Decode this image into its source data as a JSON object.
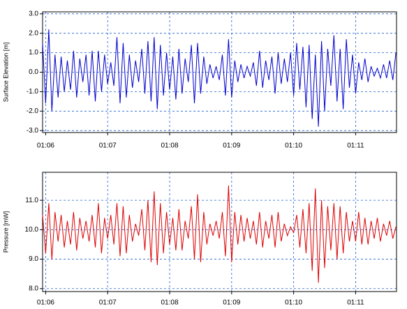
{
  "chart_data": [
    {
      "type": "line",
      "ylabel": "Surface Elevation [m]",
      "xlim": [
        5.95,
        11.66
      ],
      "xticks": [
        {
          "value": 6,
          "label": "01:06"
        },
        {
          "value": 7,
          "label": "01:07"
        },
        {
          "value": 8,
          "label": "01:08"
        },
        {
          "value": 9,
          "label": "01:09"
        },
        {
          "value": 10,
          "label": "01:10"
        },
        {
          "value": 11,
          "label": "01:11"
        }
      ],
      "ylim": [
        -3.1,
        3.1
      ],
      "yticks": [
        {
          "value": -3,
          "label": "-3.0"
        },
        {
          "value": -2,
          "label": "-2.0"
        },
        {
          "value": -1,
          "label": "-1.0"
        },
        {
          "value": 0,
          "label": "0.0"
        },
        {
          "value": 1,
          "label": "1.0"
        },
        {
          "value": 2,
          "label": "2.0"
        },
        {
          "value": 3,
          "label": "3.0"
        }
      ],
      "grid": true,
      "x": [
        5.95,
        6,
        6.05,
        6.1,
        6.15,
        6.2,
        6.25,
        6.3,
        6.35,
        6.4,
        6.45,
        6.5,
        6.55,
        6.6,
        6.65,
        6.7,
        6.75,
        6.8,
        6.85,
        6.9,
        6.95,
        7,
        7.05,
        7.1,
        7.15,
        7.2,
        7.25,
        7.3,
        7.35,
        7.4,
        7.45,
        7.5,
        7.55,
        7.6,
        7.65,
        7.7,
        7.75,
        7.8,
        7.85,
        7.9,
        7.95,
        8,
        8.05,
        8.1,
        8.15,
        8.2,
        8.25,
        8.3,
        8.35,
        8.4,
        8.45,
        8.5,
        8.55,
        8.6,
        8.65,
        8.7,
        8.75,
        8.8,
        8.85,
        8.9,
        8.95,
        9,
        9.05,
        9.1,
        9.15,
        9.2,
        9.25,
        9.3,
        9.35,
        9.4,
        9.45,
        9.5,
        9.55,
        9.6,
        9.65,
        9.7,
        9.75,
        9.8,
        9.85,
        9.9,
        9.95,
        10,
        10.05,
        10.1,
        10.15,
        10.2,
        10.25,
        10.3,
        10.35,
        10.4,
        10.45,
        10.5,
        10.55,
        10.6,
        10.65,
        10.7,
        10.75,
        10.8,
        10.85,
        10.9,
        10.95,
        11,
        11.05,
        11.1,
        11.15,
        11.2,
        11.25,
        11.3,
        11.35,
        11.4,
        11.45,
        11.5,
        11.55,
        11.6,
        11.65
      ],
      "series": [
        {
          "color": "#0000cc",
          "values": [
            1.5,
            -1.6,
            2.2,
            -2.0,
            0.9,
            -1.3,
            0.8,
            -1.0,
            0.6,
            -0.9,
            1.1,
            -1.3,
            0.7,
            -0.5,
            0.9,
            -1.2,
            1.1,
            -1.5,
            1.1,
            -1.0,
            0.9,
            -0.6,
            0.5,
            -0.7,
            1.8,
            -1.6,
            1.5,
            -1.3,
            0.9,
            -0.8,
            0.6,
            -0.5,
            1.2,
            -1.1,
            1.6,
            -1.5,
            1.8,
            -1.9,
            1.4,
            -1.2,
            1.0,
            -0.9,
            0.8,
            -1.4,
            1.2,
            -1.1,
            0.7,
            -0.5,
            1.4,
            -1.6,
            1.5,
            -1.1,
            0.8,
            -0.6,
            0.4,
            -0.3,
            0.3,
            -0.4,
            0.9,
            -1.2,
            1.7,
            -1.3,
            0.6,
            -0.5,
            0.4,
            -0.3,
            0.3,
            -0.2,
            0.5,
            -0.7,
            1.1,
            -0.8,
            0.6,
            -0.4,
            0.8,
            -1.1,
            1.0,
            -0.6,
            0.7,
            -0.5,
            1.0,
            -1.2,
            1.5,
            -0.9,
            1.3,
            -1.8,
            1.4,
            -2.4,
            0.9,
            -2.8,
            1.6,
            -2.0,
            1.2,
            -0.7,
            1.9,
            -1.5,
            1.2,
            -1.9,
            1.7,
            -0.8,
            0.9,
            -1.1,
            0.5,
            -0.4,
            0.7,
            -0.5,
            0.3,
            -0.2,
            0.2,
            -0.3,
            0.4,
            -0.3,
            0.6,
            -0.4,
            1.0
          ]
        }
      ]
    },
    {
      "type": "line",
      "ylabel": "Pressure [mW]",
      "xlim": [
        5.95,
        11.66
      ],
      "xticks": [
        {
          "value": 6,
          "label": "01:06"
        },
        {
          "value": 7,
          "label": "01:07"
        },
        {
          "value": 8,
          "label": "01:08"
        },
        {
          "value": 9,
          "label": "01:09"
        },
        {
          "value": 10,
          "label": "01:10"
        },
        {
          "value": 11,
          "label": "01:11"
        }
      ],
      "ylim": [
        7.9,
        11.95
      ],
      "yticks": [
        {
          "value": 8,
          "label": "8.0"
        },
        {
          "value": 9,
          "label": "9.0"
        },
        {
          "value": 10,
          "label": "10.0"
        },
        {
          "value": 11,
          "label": "11.0"
        }
      ],
      "grid": true,
      "x": [
        5.95,
        6,
        6.05,
        6.1,
        6.15,
        6.2,
        6.25,
        6.3,
        6.35,
        6.4,
        6.45,
        6.5,
        6.55,
        6.6,
        6.65,
        6.7,
        6.75,
        6.8,
        6.85,
        6.9,
        6.95,
        7,
        7.05,
        7.1,
        7.15,
        7.2,
        7.25,
        7.3,
        7.35,
        7.4,
        7.45,
        7.5,
        7.55,
        7.6,
        7.65,
        7.7,
        7.75,
        7.8,
        7.85,
        7.9,
        7.95,
        8,
        8.05,
        8.1,
        8.15,
        8.2,
        8.25,
        8.3,
        8.35,
        8.4,
        8.45,
        8.5,
        8.55,
        8.6,
        8.65,
        8.7,
        8.75,
        8.8,
        8.85,
        8.9,
        8.95,
        9,
        9.05,
        9.1,
        9.15,
        9.2,
        9.25,
        9.3,
        9.35,
        9.4,
        9.45,
        9.5,
        9.55,
        9.6,
        9.65,
        9.7,
        9.75,
        9.8,
        9.85,
        9.9,
        9.95,
        10,
        10.05,
        10.1,
        10.15,
        10.2,
        10.25,
        10.3,
        10.35,
        10.4,
        10.45,
        10.5,
        10.55,
        10.6,
        10.65,
        10.7,
        10.75,
        10.8,
        10.85,
        10.9,
        10.95,
        11,
        11.05,
        11.1,
        11.15,
        11.2,
        11.25,
        11.3,
        11.35,
        11.4,
        11.45,
        11.5,
        11.55,
        11.6,
        11.65
      ],
      "series": [
        {
          "color": "#dd0000",
          "values": [
            10.5,
            9.2,
            10.9,
            9.0,
            10.6,
            9.6,
            10.5,
            9.4,
            10.3,
            9.5,
            10.6,
            9.3,
            10.4,
            9.7,
            10.3,
            9.6,
            10.5,
            9.4,
            10.9,
            9.2,
            10.4,
            9.7,
            10.5,
            9.5,
            10.9,
            9.1,
            10.8,
            9.2,
            10.5,
            9.6,
            10.2,
            9.8,
            10.7,
            9.3,
            11.0,
            8.9,
            11.3,
            8.8,
            10.9,
            9.2,
            10.6,
            9.5,
            10.4,
            9.3,
            10.7,
            9.3,
            10.3,
            9.7,
            10.8,
            9.0,
            11.2,
            8.9,
            10.6,
            9.5,
            10.2,
            9.8,
            10.3,
            9.7,
            10.6,
            9.1,
            11.5,
            8.9,
            10.6,
            9.5,
            10.5,
            9.6,
            10.4,
            9.7,
            10.3,
            9.5,
            10.6,
            9.4,
            10.3,
            9.7,
            10.5,
            9.4,
            10.6,
            9.6,
            10.2,
            9.8,
            10.1,
            9.9,
            10.5,
            9.4,
            10.7,
            9.2,
            10.9,
            8.6,
            11.4,
            8.2,
            11.0,
            8.7,
            10.8,
            9.3,
            10.9,
            9.0,
            10.8,
            9.2,
            10.6,
            9.6,
            10.3,
            9.6,
            10.6,
            9.5,
            10.4,
            9.5,
            10.3,
            9.7,
            10.4,
            9.6,
            10.2,
            9.8,
            10.3,
            9.7,
            10.1
          ]
        }
      ]
    }
  ]
}
